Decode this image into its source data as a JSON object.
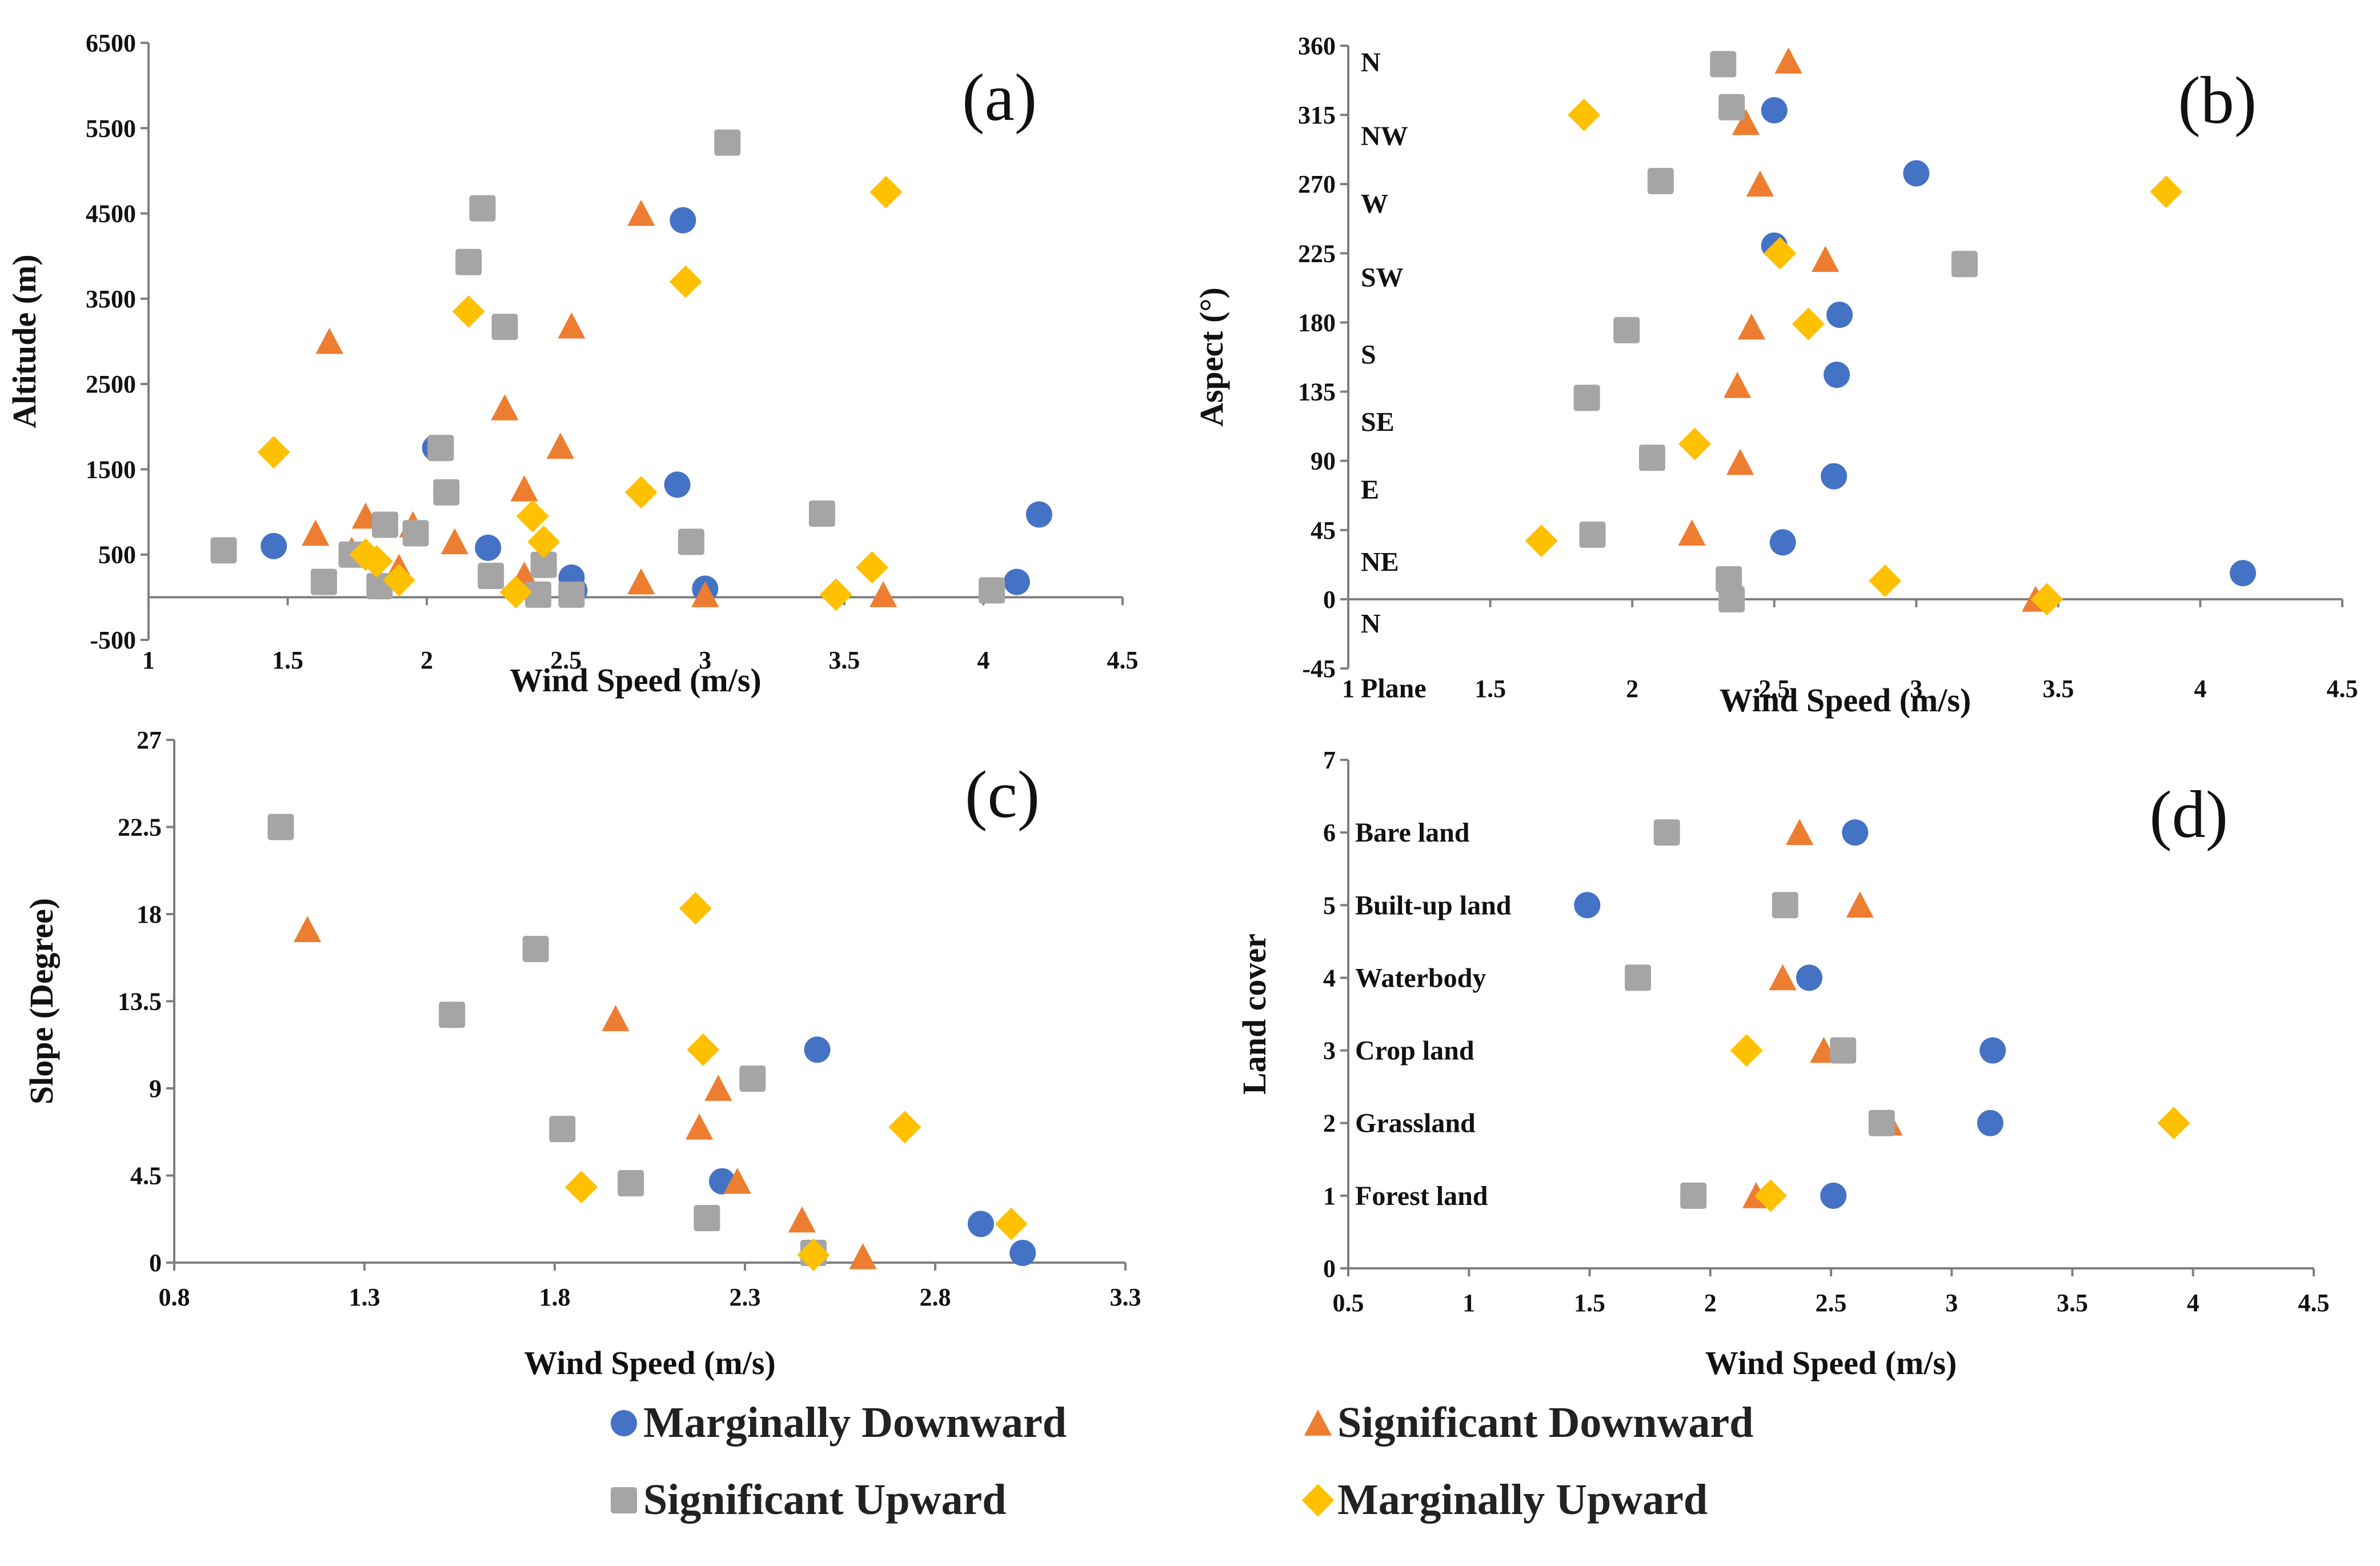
{
  "colors": {
    "marginally_downward": "#4472C4",
    "significant_downward": "#ED7D31",
    "significant_upward": "#A5A5A5",
    "marginally_upward": "#FFC000"
  },
  "legend": [
    {
      "key": "marginally_downward",
      "label": "Marginally Downward",
      "marker": "circle"
    },
    {
      "key": "significant_downward",
      "label": "Significant Downward",
      "marker": "triangle"
    },
    {
      "key": "significant_upward",
      "label": "Significant Upward",
      "marker": "square"
    },
    {
      "key": "marginally_upward",
      "label": "Marginally Upward",
      "marker": "diamond"
    }
  ],
  "chart_data": [
    {
      "id": "a",
      "type": "scatter",
      "panel_label": "(a)",
      "xlabel": "Wind Speed (m/s)",
      "ylabel": "Altitude (m)",
      "xlim": [
        1,
        4.5
      ],
      "ylim": [
        -500,
        6500
      ],
      "xticks": [
        "1",
        "1.5",
        "2",
        "2.5",
        "3",
        "3.5",
        "4",
        "4.5"
      ],
      "yticks": [
        "-500",
        "500",
        "1500",
        "2500",
        "3500",
        "4500",
        "5500",
        "6500"
      ],
      "y_axis_crossing": 0,
      "series": [
        {
          "key": "marginally_downward",
          "points": [
            [
              1.45,
              600
            ],
            [
              2.03,
              1750
            ],
            [
              2.22,
              580
            ],
            [
              2.52,
              230
            ],
            [
              2.53,
              80
            ],
            [
              2.9,
              1320
            ],
            [
              2.92,
              4420
            ],
            [
              3.0,
              100
            ],
            [
              4.12,
              180
            ],
            [
              4.2,
              970
            ]
          ]
        },
        {
          "key": "significant_downward",
          "points": [
            [
              1.6,
              750
            ],
            [
              1.65,
              3000
            ],
            [
              1.73,
              550
            ],
            [
              1.78,
              950
            ],
            [
              1.95,
              850
            ],
            [
              1.9,
              350
            ],
            [
              2.1,
              650
            ],
            [
              2.28,
              2220
            ],
            [
              2.35,
              1270
            ],
            [
              2.35,
              260
            ],
            [
              2.48,
              1770
            ],
            [
              2.52,
              3180
            ],
            [
              2.77,
              4500
            ],
            [
              2.77,
              180
            ],
            [
              3.0,
              30
            ],
            [
              3.64,
              30
            ]
          ]
        },
        {
          "key": "significant_upward",
          "points": [
            [
              1.27,
              550
            ],
            [
              1.63,
              180
            ],
            [
              1.73,
              500
            ],
            [
              1.83,
              130
            ],
            [
              1.85,
              850
            ],
            [
              1.96,
              750
            ],
            [
              2.05,
              1750
            ],
            [
              2.07,
              1230
            ],
            [
              2.2,
              4560
            ],
            [
              2.15,
              3930
            ],
            [
              2.28,
              3170
            ],
            [
              2.23,
              250
            ],
            [
              2.42,
              380
            ],
            [
              2.4,
              30
            ],
            [
              2.52,
              30
            ],
            [
              3.08,
              5330
            ],
            [
              2.95,
              650
            ],
            [
              3.42,
              980
            ],
            [
              4.03,
              80
            ]
          ]
        },
        {
          "key": "marginally_upward",
          "points": [
            [
              1.45,
              1700
            ],
            [
              1.78,
              500
            ],
            [
              1.82,
              420
            ],
            [
              1.9,
              200
            ],
            [
              2.15,
              3350
            ],
            [
              2.32,
              60
            ],
            [
              2.38,
              950
            ],
            [
              2.42,
              650
            ],
            [
              2.77,
              1230
            ],
            [
              2.93,
              3700
            ],
            [
              3.47,
              30
            ],
            [
              3.6,
              350
            ],
            [
              3.65,
              4750
            ]
          ]
        }
      ]
    },
    {
      "id": "b",
      "type": "scatter",
      "panel_label": "(b)",
      "xlabel": "Wind Speed (m/s)",
      "ylabel": "Aspect (°)",
      "xlim": [
        1,
        4.5
      ],
      "ylim": [
        -45,
        360
      ],
      "xticks": [
        "1",
        "1.5",
        "2",
        "2.5",
        "3",
        "3.5",
        "4",
        "4.5"
      ],
      "yticks": [
        "-45",
        "0",
        "45",
        "90",
        "135",
        "180",
        "225",
        "270",
        "315",
        "360"
      ],
      "y_axis_crossing": 0,
      "direction_labels": [
        {
          "text": "N",
          "y": 350
        },
        {
          "text": "NW",
          "y": 302
        },
        {
          "text": "W",
          "y": 258
        },
        {
          "text": "SW",
          "y": 210
        },
        {
          "text": "S",
          "y": 160
        },
        {
          "text": "SE",
          "y": 116
        },
        {
          "text": "E",
          "y": 72
        },
        {
          "text": "NE",
          "y": 25
        },
        {
          "text": "N",
          "y": -15
        },
        {
          "text": "Plane",
          "y": -57
        }
      ],
      "series": [
        {
          "key": "marginally_downward",
          "points": [
            [
              2.5,
              318
            ],
            [
              3.0,
              277
            ],
            [
              2.5,
              230
            ],
            [
              2.73,
              185
            ],
            [
              2.72,
              146
            ],
            [
              2.71,
              80
            ],
            [
              2.53,
              37
            ],
            [
              4.15,
              17
            ]
          ]
        },
        {
          "key": "significant_downward",
          "points": [
            [
              2.55,
              350
            ],
            [
              2.4,
              310
            ],
            [
              2.45,
              270
            ],
            [
              2.68,
              221
            ],
            [
              2.42,
              177
            ],
            [
              2.37,
              139
            ],
            [
              2.38,
              89
            ],
            [
              2.21,
              43
            ],
            [
              3.42,
              0
            ]
          ]
        },
        {
          "key": "significant_upward",
          "points": [
            [
              2.32,
              348
            ],
            [
              2.35,
              320
            ],
            [
              2.1,
              272
            ],
            [
              3.17,
              218
            ],
            [
              1.98,
              175
            ],
            [
              1.84,
              131
            ],
            [
              2.07,
              92
            ],
            [
              1.86,
              42
            ],
            [
              2.34,
              13
            ],
            [
              2.35,
              0
            ]
          ]
        },
        {
          "key": "marginally_upward",
          "points": [
            [
              1.83,
              315
            ],
            [
              3.88,
              265
            ],
            [
              2.52,
              225
            ],
            [
              2.62,
              179
            ],
            [
              2.22,
              101
            ],
            [
              1.68,
              38
            ],
            [
              2.89,
              12
            ],
            [
              3.46,
              0
            ]
          ]
        }
      ]
    },
    {
      "id": "c",
      "type": "scatter",
      "panel_label": "(c)",
      "xlabel": "Wind Speed (m/s)",
      "ylabel": "Slope (Degree)",
      "xlim": [
        0.8,
        3.3
      ],
      "ylim": [
        0,
        27
      ],
      "xticks": [
        "0.8",
        "1.3",
        "1.8",
        "2.3",
        "2.8",
        "3.3"
      ],
      "yticks": [
        "0",
        "4.5",
        "9",
        "13.5",
        "18",
        "22.5",
        "27"
      ],
      "series": [
        {
          "key": "marginally_downward",
          "points": [
            [
              2.49,
              11.0
            ],
            [
              2.24,
              4.2
            ],
            [
              2.92,
              2.0
            ],
            [
              3.03,
              0.5
            ]
          ]
        },
        {
          "key": "significant_downward",
          "points": [
            [
              1.15,
              17.2
            ],
            [
              1.96,
              12.6
            ],
            [
              2.23,
              9.0
            ],
            [
              2.18,
              7.0
            ],
            [
              2.28,
              4.2
            ],
            [
              2.45,
              2.2
            ],
            [
              2.61,
              0.3
            ]
          ]
        },
        {
          "key": "significant_upward",
          "points": [
            [
              1.08,
              22.5
            ],
            [
              1.75,
              16.2
            ],
            [
              1.53,
              12.8
            ],
            [
              2.32,
              9.5
            ],
            [
              1.82,
              6.9
            ],
            [
              2.0,
              4.1
            ],
            [
              2.2,
              2.3
            ],
            [
              2.48,
              0.5
            ]
          ]
        },
        {
          "key": "marginally_upward",
          "points": [
            [
              2.17,
              18.3
            ],
            [
              2.19,
              11.0
            ],
            [
              2.72,
              7.0
            ],
            [
              1.87,
              3.9
            ],
            [
              3.0,
              2.0
            ],
            [
              2.48,
              0.4
            ]
          ]
        }
      ]
    },
    {
      "id": "d",
      "type": "scatter",
      "panel_label": "(d)",
      "xlabel": "Wind Speed (m/s)",
      "ylabel": "Land cover",
      "xlim": [
        0.5,
        4.5
      ],
      "ylim": [
        0,
        7
      ],
      "xticks": [
        "0.5",
        "1",
        "1.5",
        "2",
        "2.5",
        "3",
        "3.5",
        "4",
        "4.5"
      ],
      "yticks": [
        "0",
        "1",
        "2",
        "3",
        "4",
        "5",
        "6",
        "7"
      ],
      "category_labels": [
        {
          "text": "Bare land",
          "y": 6
        },
        {
          "text": "Built-up land",
          "y": 5
        },
        {
          "text": "Waterbody",
          "y": 4
        },
        {
          "text": "Crop land",
          "y": 3
        },
        {
          "text": "Grassland",
          "y": 2
        },
        {
          "text": "Forest land",
          "y": 1
        }
      ],
      "series": [
        {
          "key": "marginally_downward",
          "points": [
            [
              2.6,
              6
            ],
            [
              1.49,
              5
            ],
            [
              2.41,
              4
            ],
            [
              3.17,
              3
            ],
            [
              3.16,
              2
            ],
            [
              2.51,
              1
            ]
          ]
        },
        {
          "key": "significant_downward",
          "points": [
            [
              2.37,
              6
            ],
            [
              2.62,
              5
            ],
            [
              2.3,
              4
            ],
            [
              2.47,
              3
            ],
            [
              2.74,
              2
            ],
            [
              2.19,
              1
            ]
          ]
        },
        {
          "key": "significant_upward",
          "points": [
            [
              1.82,
              6
            ],
            [
              2.31,
              5
            ],
            [
              1.7,
              4
            ],
            [
              2.55,
              3
            ],
            [
              2.71,
              2
            ],
            [
              1.93,
              1
            ]
          ]
        },
        {
          "key": "marginally_upward",
          "points": [
            [
              2.15,
              3
            ],
            [
              3.92,
              2
            ],
            [
              2.25,
              1
            ]
          ]
        }
      ]
    }
  ]
}
